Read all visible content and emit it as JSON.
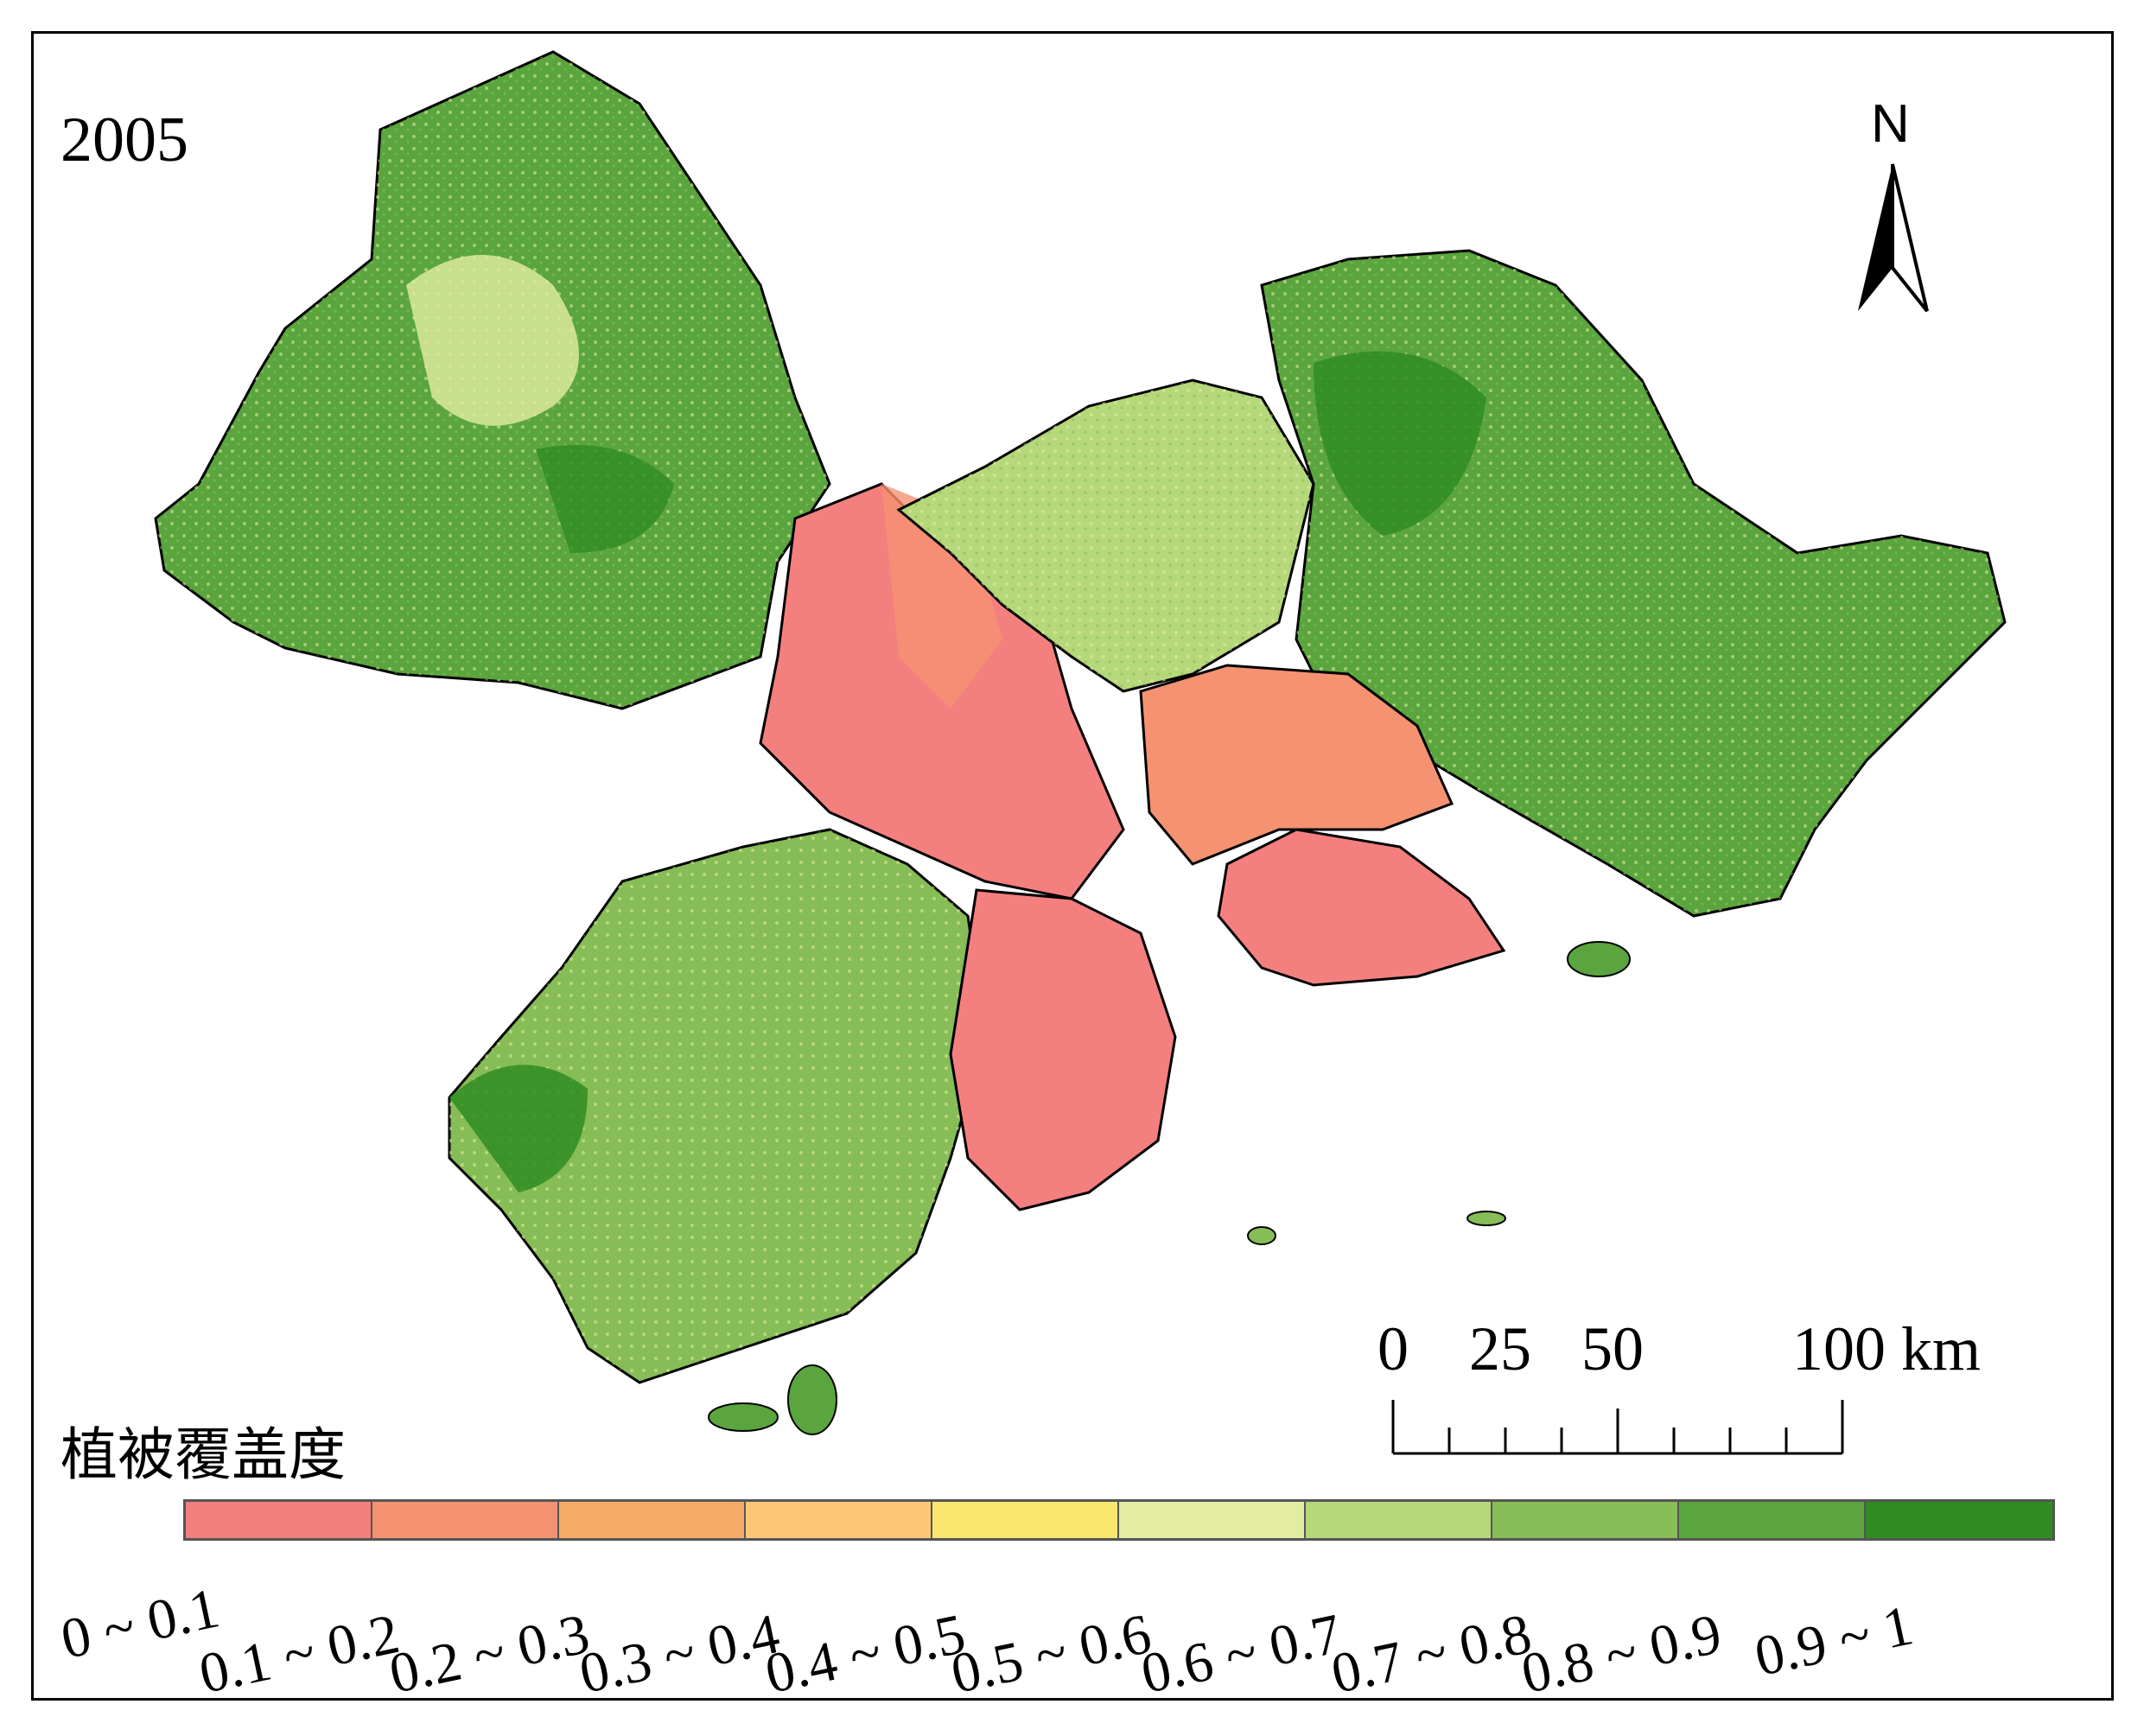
{
  "map": {
    "year": "2005",
    "legend_title": "植被覆盖度",
    "north_label": "N",
    "scale_labels": [
      "0",
      "25",
      "50",
      "100 km"
    ],
    "classes": [
      {
        "range": "0 ~ 0.1",
        "color": "#f47f7f"
      },
      {
        "range": "0.1 ~ 0.2",
        "color": "#f59272"
      },
      {
        "range": "0.2 ~ 0.3",
        "color": "#f7ab67"
      },
      {
        "range": "0.3 ~ 0.4",
        "color": "#fbc777"
      },
      {
        "range": "0.4 ~ 0.5",
        "color": "#f8e76c"
      },
      {
        "range": "0.5 ~ 0.6",
        "color": "#e3eda2"
      },
      {
        "range": "0.6 ~ 0.7",
        "color": "#b5d87a"
      },
      {
        "range": "0.7 ~ 0.8",
        "color": "#86bd56"
      },
      {
        "range": "0.8 ~ 0.9",
        "color": "#5aa53e"
      },
      {
        "range": "0.9 ~ 1",
        "color": "#2f8c21"
      }
    ]
  }
}
